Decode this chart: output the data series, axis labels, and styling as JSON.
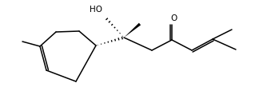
{
  "background": "#ffffff",
  "line_color": "#000000",
  "lw": 1.1,
  "ho_label": "HO",
  "o_label": "O",
  "font_size": 7.5
}
